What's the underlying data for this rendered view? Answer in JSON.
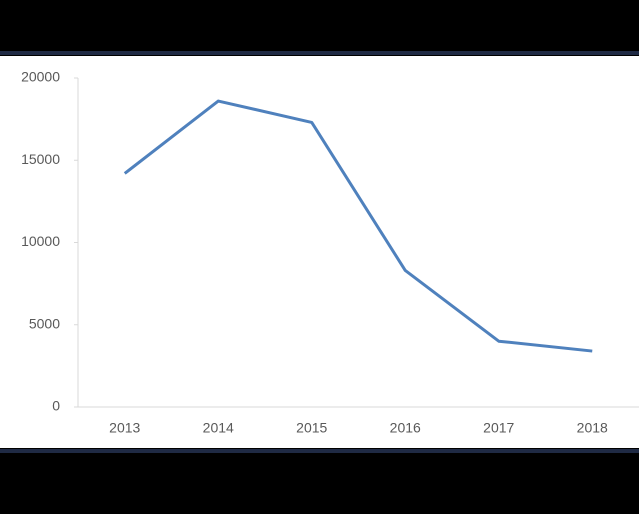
{
  "chart_data": {
    "type": "line",
    "categories": [
      "2013",
      "2014",
      "2015",
      "2016",
      "2017",
      "2018"
    ],
    "values": [
      14200,
      18600,
      17300,
      8300,
      4000,
      3400
    ],
    "color": "#4f81bd",
    "ylim": [
      0,
      20000
    ],
    "yticks": [
      0,
      5000,
      10000,
      15000,
      20000
    ]
  }
}
